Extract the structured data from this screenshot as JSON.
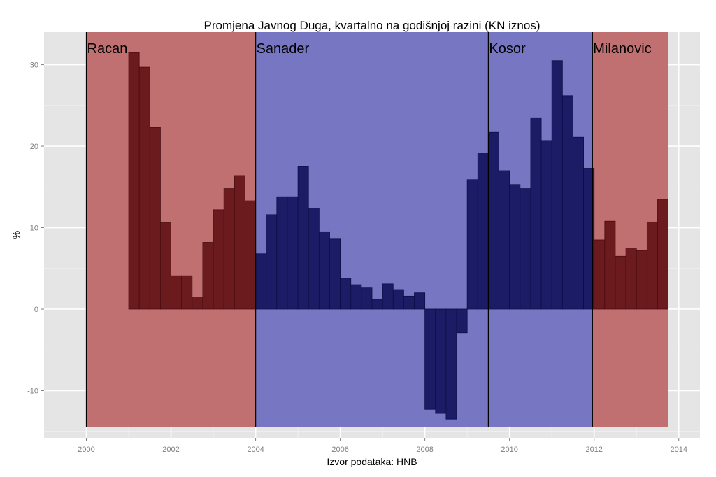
{
  "chart_data": {
    "type": "bar",
    "title": "Promjena Javnog Duga, kvartalno na godišnjoj razini (KN iznos)",
    "xlabel": "Izvor podataka: HNB",
    "ylabel": "%",
    "xlim": [
      1999.0,
      2014.5
    ],
    "ylim": [
      -15.8,
      34.0
    ],
    "x_ticks": [
      2000,
      2002,
      2004,
      2006,
      2008,
      2010,
      2012,
      2014
    ],
    "y_ticks": [
      -10,
      0,
      10,
      20,
      30
    ],
    "grid": true,
    "band_ymin": -14.5,
    "colors": {
      "panel": "#e5e5e5",
      "grid_major": "#ffffff",
      "grid_minor": "#f2f2f2",
      "red_band": "#c07070",
      "blue_band": "#7676c2",
      "red_bar": "#6b1a1e",
      "blue_bar": "#1c1c66",
      "red_bar_outline": "#4a0c10",
      "blue_bar_outline": "#0d0d45"
    },
    "eras": [
      {
        "name": "Racan",
        "start": 2000.0,
        "end": 2004.0,
        "party": "red"
      },
      {
        "name": "Sanader",
        "start": 2004.0,
        "end": 2009.5,
        "party": "blue"
      },
      {
        "name": "Kosor",
        "start": 2009.5,
        "end": 2011.96,
        "party": "blue"
      },
      {
        "name": "Milanovic",
        "start": 2011.96,
        "end": 2013.75,
        "party": "red"
      }
    ],
    "series": [
      {
        "name": "Promjena javnog duga (%)",
        "x": [
          2001.0,
          2001.25,
          2001.5,
          2001.75,
          2002.0,
          2002.25,
          2002.5,
          2002.75,
          2003.0,
          2003.25,
          2003.5,
          2003.75,
          2004.0,
          2004.25,
          2004.5,
          2004.75,
          2005.0,
          2005.25,
          2005.5,
          2005.75,
          2006.0,
          2006.25,
          2006.5,
          2006.75,
          2007.0,
          2007.25,
          2007.5,
          2007.75,
          2008.0,
          2008.25,
          2008.5,
          2008.75,
          2009.0,
          2009.25,
          2009.5,
          2009.75,
          2010.0,
          2010.25,
          2010.5,
          2010.75,
          2011.0,
          2011.25,
          2011.5,
          2011.75,
          2012.0,
          2012.25,
          2012.5,
          2012.75,
          2013.0,
          2013.25,
          2013.5
        ],
        "values": [
          31.5,
          29.7,
          22.3,
          10.6,
          4.1,
          4.1,
          1.5,
          8.2,
          12.2,
          14.8,
          16.4,
          13.3,
          6.8,
          11.6,
          13.8,
          13.8,
          17.5,
          12.4,
          9.5,
          8.6,
          3.8,
          3.0,
          2.6,
          1.2,
          3.1,
          2.4,
          1.6,
          2.0,
          -12.3,
          -12.8,
          -13.5,
          -2.9,
          15.9,
          19.1,
          21.7,
          17.0,
          15.3,
          14.8,
          23.5,
          20.7,
          30.5,
          26.2,
          21.1,
          17.3,
          8.5,
          10.8,
          6.5,
          7.5,
          7.2,
          10.7,
          13.5
        ]
      }
    ]
  }
}
